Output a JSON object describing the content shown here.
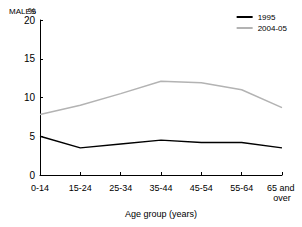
{
  "chart_data": {
    "type": "line",
    "title": "MALES",
    "y_label": "%",
    "x_label": "Age group (years)",
    "categories": [
      "0-14",
      "15-24",
      "25-34",
      "35-44",
      "45-54",
      "55-64",
      "65 and over"
    ],
    "series": [
      {
        "name": "1995",
        "color": "#000000",
        "values": [
          5.0,
          3.5,
          4.0,
          4.5,
          4.2,
          4.2,
          3.5
        ]
      },
      {
        "name": "2004-05",
        "color": "#b3b3b3",
        "values": [
          7.8,
          9.0,
          10.5,
          12.1,
          11.9,
          11.0,
          8.7
        ]
      }
    ],
    "ylim": [
      0,
      20
    ],
    "yticks": [
      0,
      5,
      10,
      15,
      20
    ],
    "grid": false,
    "legend": "top-right"
  }
}
